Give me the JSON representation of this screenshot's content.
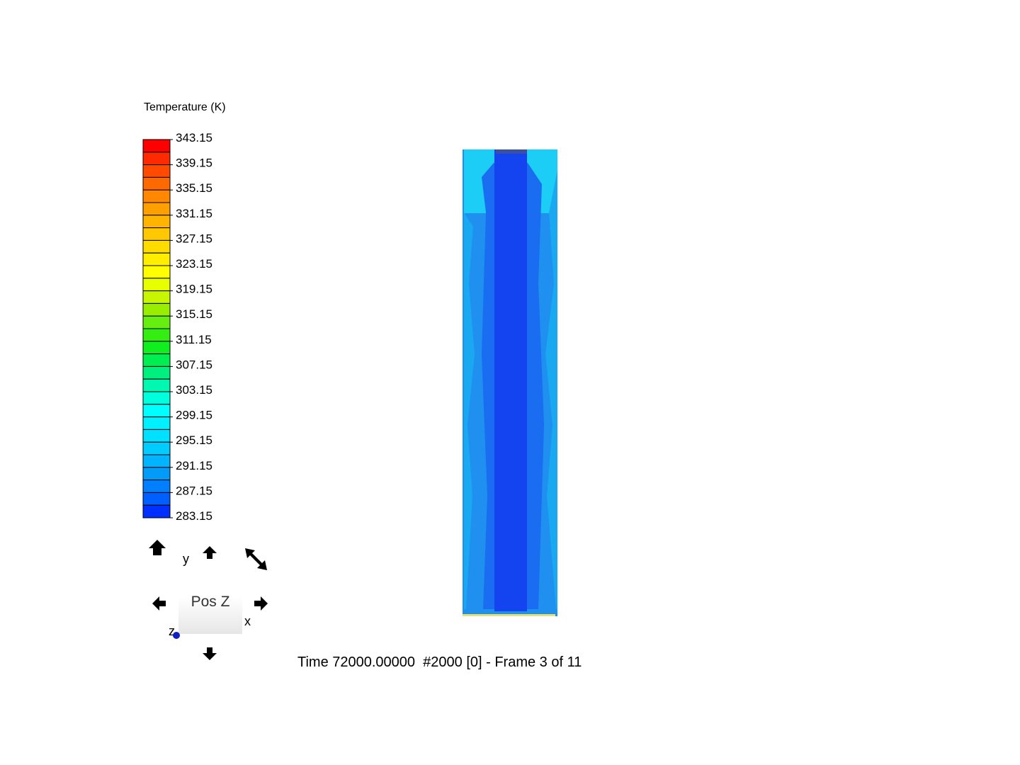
{
  "legend": {
    "title": "Temperature (K)",
    "lim": [
      283.15,
      343.15
    ],
    "ticks": [
      343.15,
      339.15,
      335.15,
      331.15,
      327.15,
      323.15,
      319.15,
      315.15,
      311.15,
      307.15,
      303.15,
      299.15,
      295.15,
      291.15,
      287.15,
      283.15
    ],
    "colors": [
      "#ff0000",
      "#ff2a00",
      "#ff4a00",
      "#ff6a00",
      "#ff8800",
      "#ffa000",
      "#ffb400",
      "#ffc800",
      "#ffdc00",
      "#ffee00",
      "#ffff00",
      "#e8ff00",
      "#c8f500",
      "#99ee00",
      "#66ee10",
      "#33ee10",
      "#10ee20",
      "#00ee50",
      "#00f080",
      "#00f8b0",
      "#00ffdd",
      "#00ffff",
      "#00f0ff",
      "#00e0ff",
      "#00ccff",
      "#00b4ff",
      "#009cf8",
      "#0080ff",
      "#0060ff",
      "#0030ff"
    ]
  },
  "view_widget": {
    "axis_y": "y",
    "axis_x": "x",
    "axis_z": "z",
    "button": "Pos Z"
  },
  "status": "Time 72000.00000  #2000 [0] - Frame 3 of 11"
}
